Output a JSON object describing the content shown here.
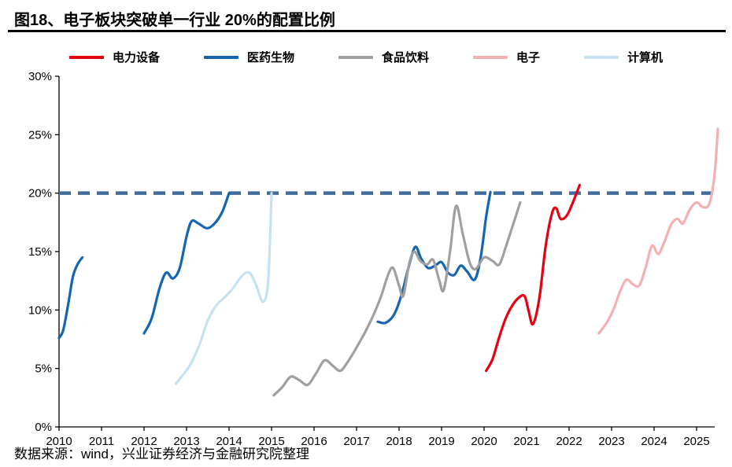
{
  "page": {
    "title": "图18、电子板块突破单一行业 20%的配置比例",
    "source_note": "数据来源：wind，兴业证券经济与金融研究院整理"
  },
  "chart_data": {
    "type": "line",
    "title": "图18、电子板块突破单一行业 20%的配置比例",
    "xlabel": "",
    "ylabel": "",
    "grid": false,
    "legend_position": "top",
    "xlim": [
      2010,
      2025.75
    ],
    "ylim": [
      0,
      30
    ],
    "x_ticks": [
      2010,
      2011,
      2012,
      2013,
      2014,
      2015,
      2016,
      2017,
      2018,
      2019,
      2020,
      2021,
      2022,
      2023,
      2024,
      2025
    ],
    "y_ticks": [
      0,
      5,
      10,
      15,
      20,
      25,
      30
    ],
    "y_tick_suffix": "%",
    "axis_color": "#000000",
    "reference_line": {
      "y": 20,
      "color": "#3f6d9e",
      "style": "dashed"
    },
    "series": [
      {
        "name": "电力设备",
        "key": "power-equipment",
        "color": "#e60012",
        "segments": [
          [
            [
              2020.05,
              4.8
            ],
            [
              2020.2,
              5.8
            ],
            [
              2020.35,
              7.6
            ],
            [
              2020.5,
              9.2
            ],
            [
              2020.65,
              10.3
            ],
            [
              2020.8,
              11.0
            ],
            [
              2020.95,
              11.2
            ],
            [
              2021.05,
              9.9
            ],
            [
              2021.15,
              8.8
            ],
            [
              2021.3,
              11.0
            ],
            [
              2021.45,
              15.5
            ],
            [
              2021.6,
              18.3
            ],
            [
              2021.7,
              18.7
            ],
            [
              2021.8,
              17.8
            ],
            [
              2021.95,
              18.1
            ],
            [
              2022.1,
              19.3
            ],
            [
              2022.25,
              20.7
            ]
          ]
        ]
      },
      {
        "name": "医药生物",
        "key": "pharma-bio",
        "color": "#1565b0",
        "segments": [
          [
            [
              2010.0,
              7.6
            ],
            [
              2010.1,
              8.3
            ],
            [
              2010.22,
              10.6
            ],
            [
              2010.33,
              12.9
            ],
            [
              2010.45,
              14.0
            ],
            [
              2010.55,
              14.5
            ]
          ],
          [
            [
              2012.0,
              8.0
            ],
            [
              2012.18,
              9.3
            ],
            [
              2012.36,
              11.8
            ],
            [
              2012.52,
              13.2
            ],
            [
              2012.68,
              12.7
            ],
            [
              2012.84,
              13.6
            ],
            [
              2013.0,
              16.3
            ],
            [
              2013.12,
              17.6
            ],
            [
              2013.28,
              17.4
            ],
            [
              2013.48,
              17.0
            ],
            [
              2013.66,
              17.4
            ],
            [
              2013.84,
              18.4
            ],
            [
              2014.0,
              20.0
            ]
          ],
          [
            [
              2017.5,
              9.0
            ],
            [
              2017.68,
              8.9
            ],
            [
              2017.88,
              9.6
            ],
            [
              2018.05,
              11.2
            ],
            [
              2018.22,
              13.6
            ],
            [
              2018.38,
              15.4
            ],
            [
              2018.52,
              14.4
            ],
            [
              2018.68,
              13.6
            ],
            [
              2018.85,
              13.8
            ],
            [
              2019.0,
              14.1
            ],
            [
              2019.15,
              13.2
            ],
            [
              2019.3,
              13.0
            ],
            [
              2019.45,
              13.8
            ],
            [
              2019.6,
              13.3
            ],
            [
              2019.78,
              12.6
            ],
            [
              2019.92,
              14.5
            ],
            [
              2020.05,
              18.0
            ],
            [
              2020.15,
              20.1
            ]
          ]
        ]
      },
      {
        "name": "食品饮料",
        "key": "food-beverage",
        "color": "#a0a0a0",
        "segments": [
          [
            [
              2015.05,
              2.7
            ],
            [
              2015.25,
              3.4
            ],
            [
              2015.45,
              4.3
            ],
            [
              2015.65,
              4.0
            ],
            [
              2015.85,
              3.6
            ],
            [
              2016.05,
              4.6
            ],
            [
              2016.25,
              5.7
            ],
            [
              2016.45,
              5.2
            ],
            [
              2016.62,
              4.8
            ],
            [
              2016.8,
              5.6
            ],
            [
              2017.0,
              6.8
            ],
            [
              2017.2,
              8.1
            ],
            [
              2017.4,
              9.6
            ],
            [
              2017.58,
              11.2
            ],
            [
              2017.74,
              13.0
            ],
            [
              2017.86,
              13.6
            ],
            [
              2018.0,
              12.1
            ],
            [
              2018.1,
              11.2
            ],
            [
              2018.24,
              14.0
            ],
            [
              2018.36,
              15.0
            ],
            [
              2018.5,
              14.2
            ],
            [
              2018.66,
              13.9
            ],
            [
              2018.8,
              14.3
            ],
            [
              2018.94,
              12.6
            ],
            [
              2019.05,
              11.7
            ],
            [
              2019.2,
              15.0
            ],
            [
              2019.34,
              18.9
            ],
            [
              2019.5,
              16.5
            ],
            [
              2019.66,
              14.1
            ],
            [
              2019.8,
              13.5
            ],
            [
              2020.0,
              14.5
            ],
            [
              2020.2,
              14.2
            ],
            [
              2020.36,
              13.9
            ],
            [
              2020.52,
              15.5
            ],
            [
              2020.7,
              17.5
            ],
            [
              2020.85,
              19.2
            ]
          ]
        ]
      },
      {
        "name": "电子",
        "key": "electronics",
        "color": "#f3b0b0",
        "segments": [
          [
            [
              2022.7,
              8.0
            ],
            [
              2022.9,
              9.0
            ],
            [
              2023.05,
              10.1
            ],
            [
              2023.2,
              11.6
            ],
            [
              2023.35,
              12.6
            ],
            [
              2023.5,
              12.2
            ],
            [
              2023.65,
              12.1
            ],
            [
              2023.8,
              13.6
            ],
            [
              2023.95,
              15.5
            ],
            [
              2024.1,
              14.8
            ],
            [
              2024.25,
              15.9
            ],
            [
              2024.4,
              17.3
            ],
            [
              2024.55,
              17.8
            ],
            [
              2024.68,
              17.4
            ],
            [
              2024.84,
              18.6
            ],
            [
              2025.0,
              19.2
            ],
            [
              2025.15,
              18.8
            ],
            [
              2025.3,
              19.1
            ],
            [
              2025.42,
              21.5
            ],
            [
              2025.5,
              25.5
            ]
          ]
        ]
      },
      {
        "name": "计算机",
        "key": "computer",
        "color": "#c5e2f2",
        "segments": [
          [
            [
              2012.75,
              3.7
            ],
            [
              2012.95,
              4.6
            ],
            [
              2013.1,
              5.4
            ],
            [
              2013.3,
              7.0
            ],
            [
              2013.5,
              9.1
            ],
            [
              2013.7,
              10.4
            ],
            [
              2013.9,
              11.1
            ],
            [
              2014.1,
              11.9
            ],
            [
              2014.3,
              12.9
            ],
            [
              2014.48,
              13.2
            ],
            [
              2014.64,
              12.1
            ],
            [
              2014.8,
              10.7
            ],
            [
              2014.92,
              12.5
            ],
            [
              2015.0,
              20.0
            ]
          ]
        ]
      }
    ]
  }
}
